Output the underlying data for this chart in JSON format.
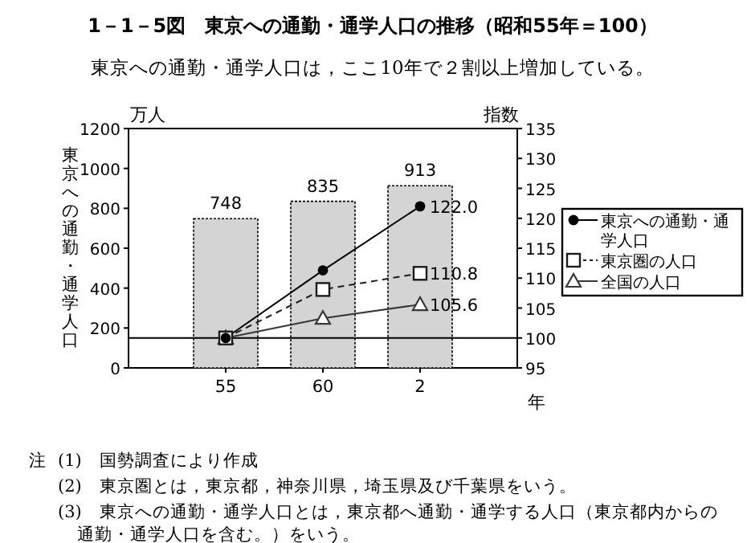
{
  "chart_data": {
    "type": "bar",
    "title": "1－1－5図　東京への通勤・通学人口の推移（昭和55年＝100）",
    "subtitle": "東京への通勤・通学人口は，ここ10年で２割以上増加している。",
    "xlabel": "年",
    "ylabel": "東京への通勤・通学人口",
    "y2label": "指数",
    "categories": [
      "55",
      "60",
      "2"
    ],
    "series": [
      {
        "type": "bar",
        "color": "#d4d4d4",
        "values": [
          748,
          835,
          913
        ]
      },
      {
        "type": "line",
        "name": "東京への通勤・通学人口",
        "axis": "y2",
        "color": "#000000",
        "marker": "circle",
        "line_style": "solid",
        "values": [
          100,
          111.3,
          122.0
        ],
        "value_labels": [
          null,
          null,
          "122.0"
        ]
      },
      {
        "type": "line",
        "name": "東京圏の人口",
        "axis": "y2",
        "color": "#1c1c1c",
        "marker": "square",
        "line_style": "dashed",
        "values": [
          100,
          108.1,
          110.8
        ],
        "value_labels": [
          null,
          null,
          "110.8"
        ]
      },
      {
        "type": "line",
        "name": "全国の人口",
        "axis": "y2",
        "color": "#383838",
        "marker": "triangle",
        "line_style": "solid",
        "values": [
          100,
          103.3,
          105.6
        ],
        "value_labels": [
          null,
          null,
          "105.6"
        ]
      }
    ],
    "data_labels": true,
    "ylim": [
      0,
      1200
    ],
    "yticks": [
      0,
      200,
      400,
      600,
      800,
      1000,
      1200
    ],
    "y2lim": [
      95,
      135
    ],
    "y2ticks": [
      95,
      100,
      105,
      110,
      115,
      120,
      125,
      130,
      135
    ],
    "ref_lines": [
      {
        "axis": "y2",
        "value": 100
      }
    ],
    "legend": "right",
    "annotations": [
      "万人",
      "注",
      "(1)　国勢調査により作成",
      "(2)　東京圏とは，東京都，神奈川県，埼玉県及び千葉県をいう。",
      "(3)　東京への通勤・通学人口とは，東京都へ通勤・通学する人口（東京都内からの通勤・通学人口を含む。）をいう。"
    ]
  }
}
